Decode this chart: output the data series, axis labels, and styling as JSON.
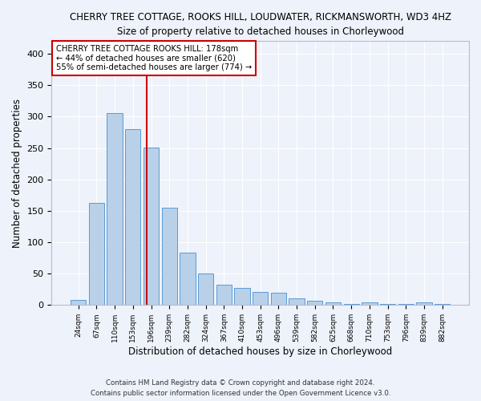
{
  "title1": "CHERRY TREE COTTAGE, ROOKS HILL, LOUDWATER, RICKMANSWORTH, WD3 4HZ",
  "title2": "Size of property relative to detached houses in Chorleywood",
  "xlabel": "Distribution of detached houses by size in Chorleywood",
  "ylabel": "Number of detached properties",
  "categories": [
    "24sqm",
    "67sqm",
    "110sqm",
    "153sqm",
    "196sqm",
    "239sqm",
    "282sqm",
    "324sqm",
    "367sqm",
    "410sqm",
    "453sqm",
    "496sqm",
    "539sqm",
    "582sqm",
    "625sqm",
    "668sqm",
    "710sqm",
    "753sqm",
    "796sqm",
    "839sqm",
    "882sqm"
  ],
  "values": [
    8,
    163,
    305,
    280,
    251,
    155,
    84,
    50,
    32,
    27,
    21,
    20,
    11,
    7,
    4,
    2,
    4,
    2,
    2,
    4,
    2
  ],
  "bar_color": "#b8d0e8",
  "bar_edge_color": "#5b9bd5",
  "vline_color": "#cc0000",
  "vline_x": 3.75,
  "annotation_title": "CHERRY TREE COTTAGE ROOKS HILL: 178sqm",
  "annotation_line1": "← 44% of detached houses are smaller (620)",
  "annotation_line2": "55% of semi-detached houses are larger (774) →",
  "annotation_box_color": "#ffffff",
  "annotation_border_color": "#cc0000",
  "ylim": [
    0,
    420
  ],
  "yticks": [
    0,
    50,
    100,
    150,
    200,
    250,
    300,
    350,
    400
  ],
  "footer1": "Contains HM Land Registry data © Crown copyright and database right 2024.",
  "footer2": "Contains public sector information licensed under the Open Government Licence v3.0.",
  "background_color": "#eef2fa",
  "grid_color": "#ffffff",
  "fig_width": 6.0,
  "fig_height": 5.0,
  "dpi": 100
}
